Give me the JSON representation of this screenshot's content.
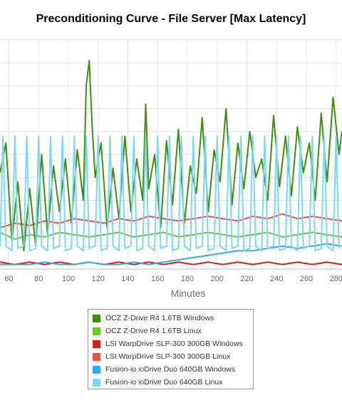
{
  "chart_data": {
    "type": "line",
    "title": "Preconditioning Curve - File Server [Max Latency]",
    "xlabel": "Minutes",
    "ylabel": "",
    "x_tick_labels": [
      "60",
      "80",
      "100",
      "120",
      "140",
      "160",
      "180",
      "200",
      "220",
      "240",
      "260",
      "280"
    ],
    "xlim": [
      54,
      284
    ],
    "ylim": [
      0,
      1
    ],
    "y_values_note": "",
    "grid": true,
    "legend_position": "bottom",
    "series": [
      {
        "name": "OCZ Z-Drive R4 1.6TB Windows",
        "color": "#3f8f0e",
        "x": [
          54,
          58,
          62,
          66,
          70,
          74,
          78,
          82,
          86,
          90,
          94,
          98,
          102,
          106,
          110,
          112,
          114,
          116,
          118,
          122,
          126,
          130,
          134,
          138,
          142,
          146,
          150,
          152,
          154,
          158,
          162,
          166,
          170,
          174,
          178,
          182,
          186,
          190,
          194,
          198,
          202,
          206,
          210,
          214,
          218,
          222,
          226,
          230,
          234,
          238,
          242,
          246,
          250,
          254,
          258,
          262,
          266,
          270,
          274,
          278,
          282,
          284
        ],
        "y": [
          0.42,
          0.55,
          0.12,
          0.38,
          0.08,
          0.35,
          0.1,
          0.5,
          0.15,
          0.45,
          0.25,
          0.48,
          0.2,
          0.52,
          0.3,
          0.8,
          0.91,
          0.62,
          0.4,
          0.55,
          0.18,
          0.44,
          0.22,
          0.58,
          0.25,
          0.48,
          0.3,
          0.72,
          0.35,
          0.5,
          0.18,
          0.56,
          0.28,
          0.61,
          0.2,
          0.45,
          0.33,
          0.66,
          0.25,
          0.52,
          0.38,
          0.7,
          0.28,
          0.55,
          0.35,
          0.6,
          0.4,
          0.48,
          0.3,
          0.67,
          0.36,
          0.58,
          0.32,
          0.62,
          0.42,
          0.55,
          0.3,
          0.68,
          0.38,
          0.75,
          0.5,
          0.6
        ]
      },
      {
        "name": "OCZ Z-Drive R4 1.6TB Linux",
        "color": "#6dc230",
        "x": [
          54,
          64,
          74,
          84,
          94,
          104,
          114,
          124,
          134,
          144,
          154,
          164,
          174,
          184,
          194,
          204,
          214,
          224,
          234,
          244,
          254,
          264,
          274,
          284
        ],
        "y": [
          0.16,
          0.13,
          0.15,
          0.14,
          0.16,
          0.15,
          0.14,
          0.15,
          0.16,
          0.14,
          0.15,
          0.16,
          0.14,
          0.15,
          0.16,
          0.15,
          0.14,
          0.15,
          0.16,
          0.14,
          0.15,
          0.16,
          0.15,
          0.14
        ]
      },
      {
        "name": "LSI WarpDrive SLP-300 300GB Windows",
        "color": "#c8231c",
        "x": [
          54,
          64,
          74,
          84,
          94,
          104,
          114,
          124,
          134,
          144,
          154,
          164,
          174,
          184,
          194,
          204,
          214,
          224,
          234,
          244,
          254,
          264,
          274,
          284
        ],
        "y": [
          0.03,
          0.02,
          0.03,
          0.02,
          0.03,
          0.02,
          0.03,
          0.02,
          0.03,
          0.02,
          0.03,
          0.02,
          0.03,
          0.02,
          0.03,
          0.02,
          0.03,
          0.02,
          0.03,
          0.02,
          0.03,
          0.02,
          0.03,
          0.02
        ]
      },
      {
        "name": "LSI WarpDrive SLP-300 300GB Linux",
        "color": "#e5534b",
        "x": [
          54,
          64,
          74,
          84,
          94,
          104,
          114,
          124,
          134,
          144,
          154,
          164,
          174,
          184,
          194,
          204,
          214,
          224,
          234,
          244,
          254,
          264,
          274,
          284
        ],
        "y": [
          0.18,
          0.2,
          0.19,
          0.21,
          0.2,
          0.22,
          0.21,
          0.2,
          0.22,
          0.21,
          0.23,
          0.22,
          0.21,
          0.22,
          0.23,
          0.22,
          0.21,
          0.23,
          0.22,
          0.24,
          0.22,
          0.23,
          0.22,
          0.21
        ]
      },
      {
        "name": "Fusion-io ioDrive Duo 640GB Windows",
        "color": "#3aa8e0",
        "x": [
          54,
          64,
          74,
          84,
          94,
          104,
          114,
          124,
          134,
          144,
          154,
          164,
          174,
          184,
          194,
          204,
          214,
          224,
          234,
          244,
          254,
          264,
          274,
          284
        ],
        "y": [
          0.02,
          0.02,
          0.02,
          0.03,
          0.02,
          0.02,
          0.03,
          0.02,
          0.02,
          0.03,
          0.02,
          0.03,
          0.04,
          0.05,
          0.06,
          0.07,
          0.08,
          0.08,
          0.09,
          0.1,
          0.09,
          0.1,
          0.11,
          0.1
        ]
      },
      {
        "name": "Fusion-io ioDrive Duo 640GB Linux",
        "color": "#7dd6f5",
        "x": [
          54,
          56,
          58,
          62,
          64,
          66,
          70,
          72,
          74,
          78,
          80,
          82,
          86,
          88,
          90,
          94,
          96,
          98,
          102,
          104,
          106,
          110,
          112,
          114,
          118,
          120,
          122,
          126,
          128,
          130,
          134,
          136,
          138,
          142,
          144,
          146,
          150,
          152,
          154,
          158,
          160,
          162,
          166,
          168,
          170,
          174,
          176,
          178,
          182,
          184,
          186,
          190,
          192,
          194,
          198,
          200,
          202,
          206,
          208,
          210,
          214,
          216,
          218,
          222,
          224,
          226,
          230,
          232,
          234,
          238,
          240,
          242,
          246,
          248,
          250,
          254,
          256,
          258,
          262,
          264,
          266,
          270,
          272,
          274,
          278,
          280,
          282
        ],
        "y": [
          0.1,
          0.58,
          0.1,
          0.08,
          0.58,
          0.09,
          0.1,
          0.58,
          0.08,
          0.09,
          0.58,
          0.1,
          0.08,
          0.58,
          0.09,
          0.1,
          0.58,
          0.08,
          0.09,
          0.58,
          0.1,
          0.08,
          0.58,
          0.09,
          0.1,
          0.58,
          0.08,
          0.09,
          0.58,
          0.1,
          0.08,
          0.58,
          0.09,
          0.1,
          0.58,
          0.08,
          0.09,
          0.58,
          0.1,
          0.08,
          0.58,
          0.09,
          0.1,
          0.58,
          0.08,
          0.09,
          0.58,
          0.1,
          0.08,
          0.58,
          0.09,
          0.1,
          0.58,
          0.08,
          0.09,
          0.58,
          0.1,
          0.08,
          0.58,
          0.09,
          0.1,
          0.58,
          0.08,
          0.09,
          0.58,
          0.1,
          0.08,
          0.58,
          0.09,
          0.1,
          0.58,
          0.08,
          0.09,
          0.58,
          0.1,
          0.08,
          0.58,
          0.09,
          0.1,
          0.58,
          0.08,
          0.09,
          0.58,
          0.1,
          0.08,
          0.58,
          0.09
        ]
      }
    ]
  }
}
